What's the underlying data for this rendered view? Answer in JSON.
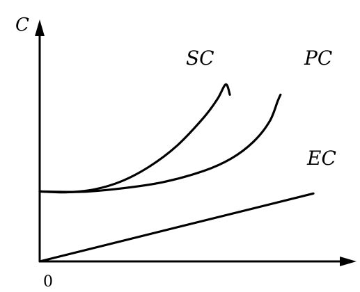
{
  "chart_data": {
    "type": "line",
    "title": "",
    "ylabel": "C",
    "xlabel": "",
    "origin_label": "0",
    "grid": false,
    "legend": "none",
    "xlim": [
      0,
      10
    ],
    "ylim": [
      0,
      10
    ],
    "series": [
      {
        "name": "SC",
        "x": [
          0,
          1,
          2,
          3,
          4,
          5,
          6,
          6.5,
          6.8,
          6.95
        ],
        "y": [
          3.4,
          3.36,
          3.5,
          3.9,
          4.6,
          5.6,
          7.0,
          7.9,
          8.6,
          8.1
        ]
      },
      {
        "name": "PC",
        "x": [
          0,
          1.5,
          3,
          4.5,
          6,
          7,
          7.8,
          8.4,
          8.7,
          8.8
        ],
        "y": [
          3.4,
          3.38,
          3.55,
          3.85,
          4.4,
          5.0,
          5.8,
          6.8,
          7.8,
          8.1
        ]
      },
      {
        "name": "EC",
        "x": [
          0,
          10
        ],
        "y": [
          0,
          3.3
        ]
      }
    ],
    "label_text": {
      "SC": "SC",
      "PC": "PC",
      "EC": "EC"
    }
  }
}
